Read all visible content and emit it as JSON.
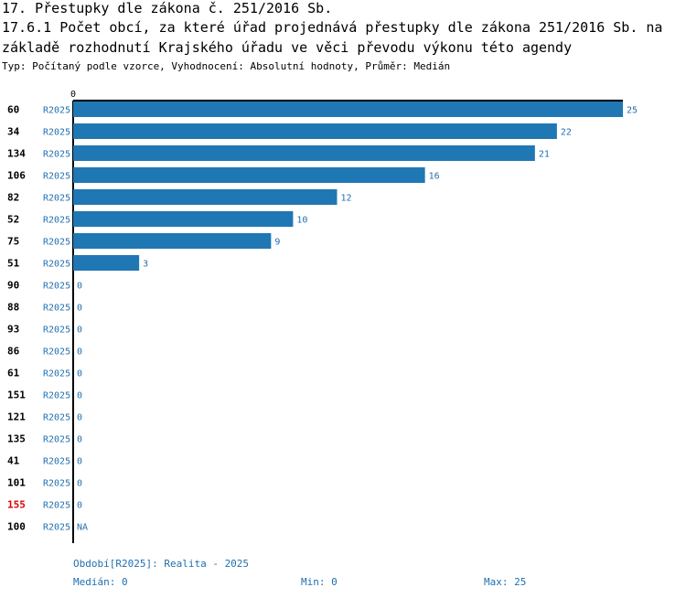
{
  "header": {
    "title_line1": "17. Přestupky dle zákona č. 251/2016 Sb.",
    "title_line2": "17.6.1 Počet obcí, za které úřad projednává přestupky dle zákona 251/2016 Sb. na",
    "title_line3": "základě rozhodnutí Krajského úřadu ve věci převodu výkonu této agendy",
    "subtitle": "Typ: Počítaný podle vzorce, Vyhodnocení: Absolutní hodnoty, Průměr: Medián"
  },
  "colors": {
    "bar": "#1f77b4",
    "period_label": "#1f6fb0",
    "highlight_row": "#dd0000",
    "row_label": "#000000"
  },
  "chart_data": {
    "type": "bar",
    "orientation": "horizontal",
    "series_label": "R2025",
    "axis_zero_label": "0",
    "xlim": [
      0,
      25
    ],
    "highlighted_category": "155",
    "rows": [
      {
        "category": "60",
        "value": 25,
        "label": "25"
      },
      {
        "category": "34",
        "value": 22,
        "label": "22"
      },
      {
        "category": "134",
        "value": 21,
        "label": "21"
      },
      {
        "category": "106",
        "value": 16,
        "label": "16"
      },
      {
        "category": "82",
        "value": 12,
        "label": "12"
      },
      {
        "category": "52",
        "value": 10,
        "label": "10"
      },
      {
        "category": "75",
        "value": 9,
        "label": "9"
      },
      {
        "category": "51",
        "value": 3,
        "label": "3"
      },
      {
        "category": "90",
        "value": 0,
        "label": "0"
      },
      {
        "category": "88",
        "value": 0,
        "label": "0"
      },
      {
        "category": "93",
        "value": 0,
        "label": "0"
      },
      {
        "category": "86",
        "value": 0,
        "label": "0"
      },
      {
        "category": "61",
        "value": 0,
        "label": "0"
      },
      {
        "category": "151",
        "value": 0,
        "label": "0"
      },
      {
        "category": "121",
        "value": 0,
        "label": "0"
      },
      {
        "category": "135",
        "value": 0,
        "label": "0"
      },
      {
        "category": "41",
        "value": 0,
        "label": "0"
      },
      {
        "category": "101",
        "value": 0,
        "label": "0"
      },
      {
        "category": "155",
        "value": 0,
        "label": "0"
      },
      {
        "category": "100",
        "value": null,
        "label": "NA"
      }
    ]
  },
  "footer": {
    "period": "Období[R2025]: Realita - 2025",
    "median": "Medián: 0",
    "min": "Min: 0",
    "max": "Max: 25"
  }
}
